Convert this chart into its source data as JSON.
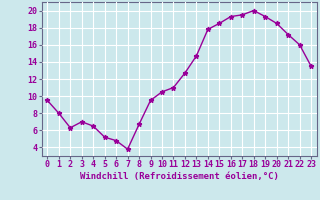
{
  "x": [
    0,
    1,
    2,
    3,
    4,
    5,
    6,
    7,
    8,
    9,
    10,
    11,
    12,
    13,
    14,
    15,
    16,
    17,
    18,
    19,
    20,
    21,
    22,
    23
  ],
  "y": [
    9.5,
    8.0,
    6.3,
    7.0,
    6.5,
    5.2,
    4.8,
    3.8,
    6.7,
    9.5,
    10.5,
    11.0,
    12.7,
    14.7,
    17.8,
    18.5,
    19.3,
    19.5,
    20.0,
    19.3,
    18.5,
    17.2,
    16.0,
    13.5
  ],
  "color": "#990099",
  "background_color": "#cce8ec",
  "grid_color": "#ffffff",
  "xlabel": "Windchill (Refroidissement éolien,°C)",
  "xlim": [
    -0.5,
    23.5
  ],
  "ylim": [
    3.0,
    21.0
  ],
  "yticks": [
    4,
    6,
    8,
    10,
    12,
    14,
    16,
    18,
    20
  ],
  "xticks": [
    0,
    1,
    2,
    3,
    4,
    5,
    6,
    7,
    8,
    9,
    10,
    11,
    12,
    13,
    14,
    15,
    16,
    17,
    18,
    19,
    20,
    21,
    22,
    23
  ],
  "marker": "*",
  "markersize": 3.5,
  "linewidth": 1.0,
  "xlabel_fontsize": 6.5,
  "tick_fontsize": 6.0,
  "spine_color": "#666688"
}
